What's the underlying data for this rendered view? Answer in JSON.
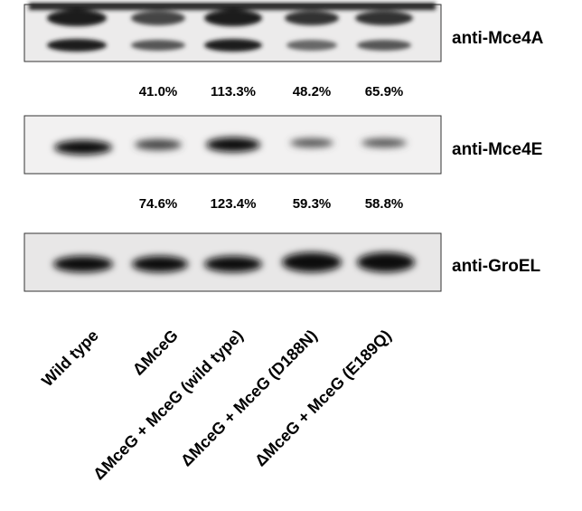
{
  "blots": [
    {
      "label": "anti-Mce4A"
    },
    {
      "label": "anti-Mce4E"
    },
    {
      "label": "anti-GroEL"
    }
  ],
  "quantifications": [
    [
      "41.0%",
      "113.3%",
      "48.2%",
      "65.9%"
    ],
    [
      "74.6%",
      "123.4%",
      "59.3%",
      "58.8%"
    ]
  ],
  "lanes": [
    "Wild type",
    "ΔMceG",
    "ΔMceG + MceG (wild type)",
    "ΔMceG + MceG (D188N)",
    "ΔMceG + MceG (E189Q)"
  ]
}
